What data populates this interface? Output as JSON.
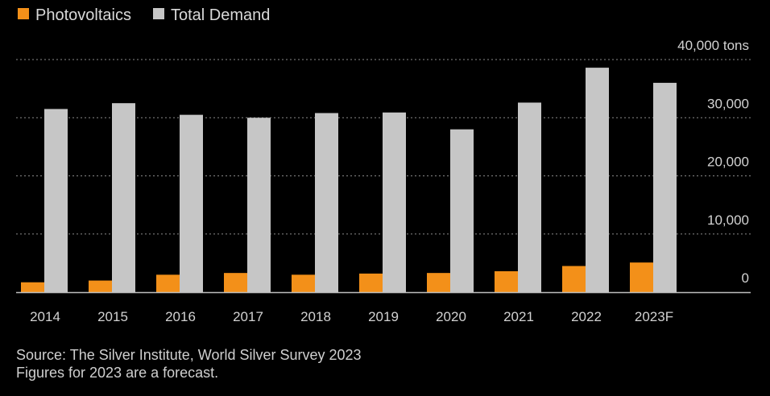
{
  "chart_data": {
    "type": "bar",
    "categories": [
      "2014",
      "2015",
      "2016",
      "2017",
      "2018",
      "2019",
      "2020",
      "2021",
      "2022",
      "2023F"
    ],
    "series": [
      {
        "name": "Photovoltaics",
        "color": "#f39019",
        "values": [
          1700,
          2000,
          3000,
          3300,
          3000,
          3200,
          3300,
          3600,
          4500,
          5100
        ]
      },
      {
        "name": "Total Demand",
        "color": "#c6c6c6",
        "values": [
          31500,
          32500,
          30500,
          30000,
          30800,
          30900,
          28000,
          32600,
          38600,
          36000
        ]
      }
    ],
    "y_ticks": [
      0,
      10000,
      20000,
      30000,
      40000
    ],
    "y_tick_labels": [
      "0",
      "10,000",
      "20,000",
      "30,000",
      "40,000"
    ],
    "y_unit": "tons",
    "ylim": [
      0,
      40000
    ],
    "legend_position": "top-left",
    "grid": true
  },
  "footnotes": {
    "source": "Source: The Silver Institute, World Silver Survey 2023",
    "note": "Figures for 2023 are a forecast."
  }
}
